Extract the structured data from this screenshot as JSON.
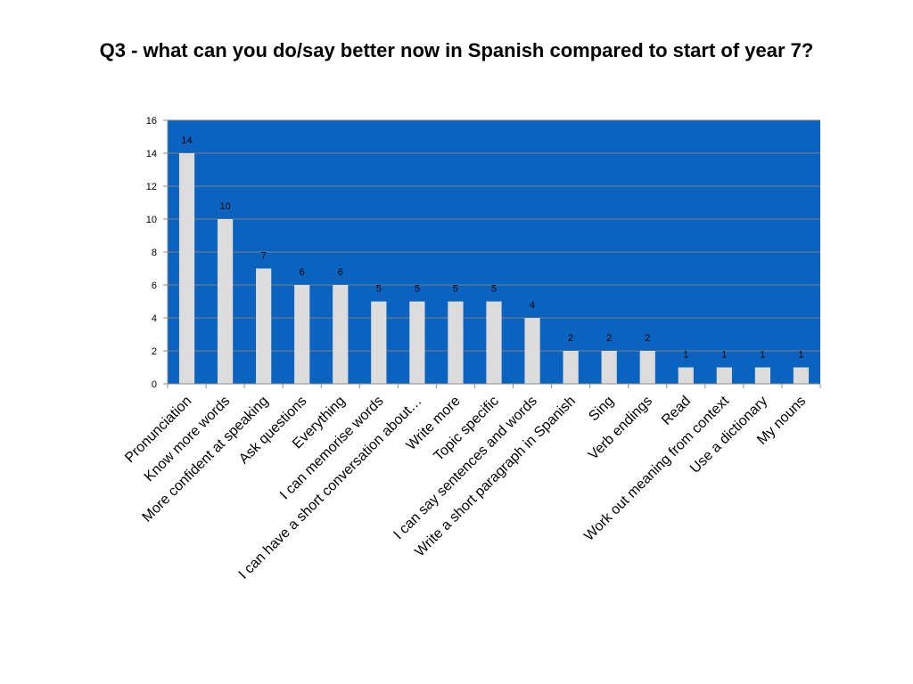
{
  "title": "Q3 - what can you do/say better now in Spanish compared to start of year 7?",
  "chart_data": {
    "type": "bar",
    "categories": [
      "Pronunciation",
      "Know more words",
      "More confident at speaking",
      "Ask questions",
      "Everything",
      "I can memorise words",
      "I can have a short conversation about…",
      "Write more",
      "Topic specific",
      "I can say sentences and words",
      "Write a short paragraph in Spanish",
      "Sing",
      "Verb endings",
      "Read",
      "Work out meaning from context",
      "Use a dictionary",
      "My nouns"
    ],
    "values": [
      14,
      10,
      7,
      6,
      6,
      5,
      5,
      5,
      5,
      4,
      2,
      2,
      2,
      1,
      1,
      1,
      1
    ],
    "ylim": [
      0,
      16
    ],
    "yticks": [
      0,
      2,
      4,
      6,
      8,
      10,
      12,
      14,
      16
    ],
    "grid": true,
    "data_labels": true,
    "colors": {
      "plot_background": "#0a63bf",
      "bar_fill": "#dcdcdc",
      "gridline": "#7f7f7f",
      "axis": "#8c8c8c"
    }
  }
}
